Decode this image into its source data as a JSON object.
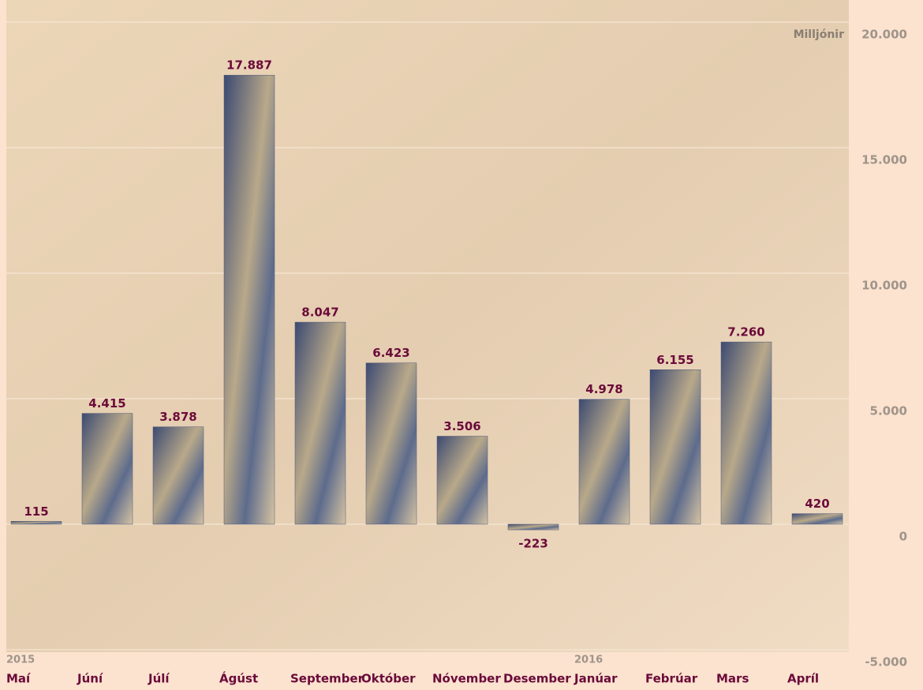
{
  "chart_data": {
    "type": "bar",
    "unit_label": "Milljónir",
    "categories": [
      "Maí",
      "Júní",
      "Júlí",
      "Ágúst",
      "September",
      "Október",
      "Nóvember",
      "Desember",
      "Janúar",
      "Febrúar",
      "Mars",
      "Apríl"
    ],
    "years": [
      {
        "index": 0,
        "label": "2015"
      },
      {
        "index": 8,
        "label": "2016"
      }
    ],
    "values": [
      115,
      4415,
      3878,
      17887,
      8047,
      6423,
      3506,
      -223,
      4978,
      6155,
      7260,
      420
    ],
    "value_labels": [
      "115",
      "4.415",
      "3.878",
      "17.887",
      "8.047",
      "6.423",
      "3.506",
      "-223",
      "4.978",
      "6.155",
      "7.260",
      "420"
    ],
    "color": "#4a5578",
    "label_color": "#6b0a3a",
    "ylim": [
      -5000,
      20000
    ],
    "yticks": [
      {
        "value": -5000,
        "label": "-5.000"
      },
      0,
      {
        "value": 5000,
        "label": "5.000"
      },
      {
        "value": 10000,
        "label": "10.000"
      },
      {
        "value": 15000,
        "label": "15.000"
      },
      {
        "value": 20000,
        "label": "20.000"
      }
    ],
    "grid": true
  }
}
